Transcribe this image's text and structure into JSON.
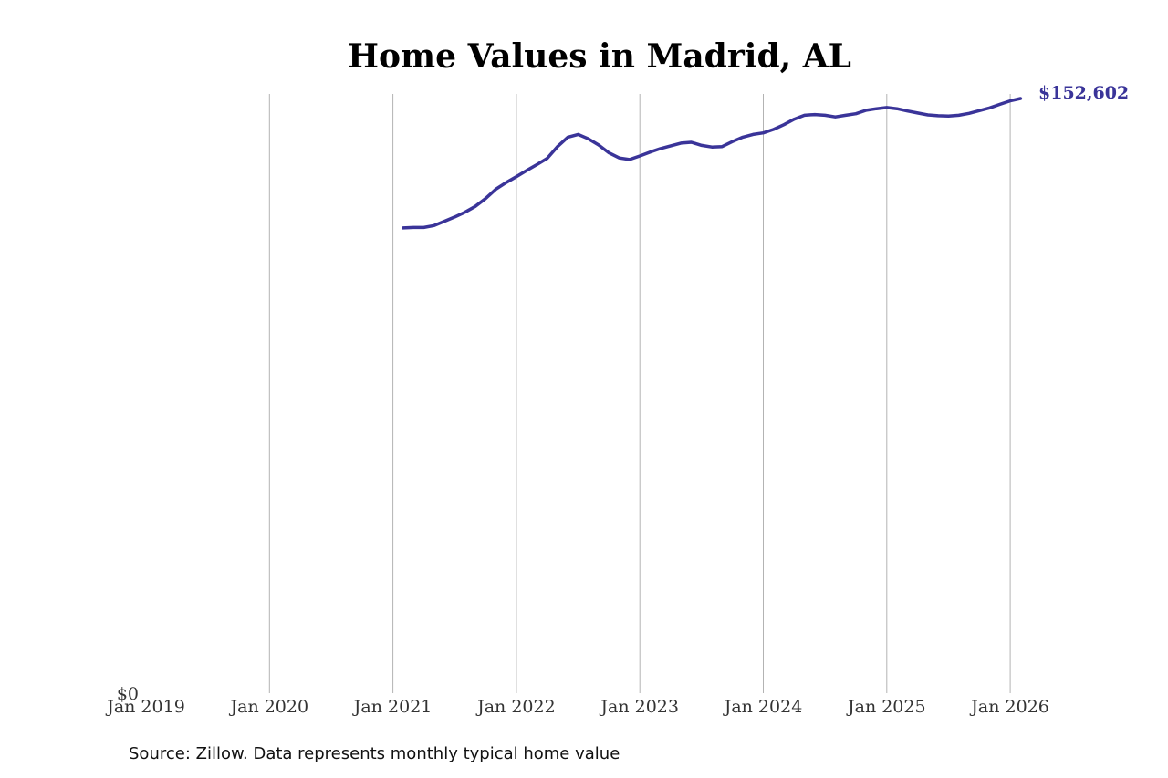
{
  "colors": {
    "line": "#3a3499",
    "end_label": "#3a3499",
    "grid": "#b3b3b3",
    "title": "#000000",
    "background": "#ffffff"
  },
  "source_note": "Source: Zillow. Data represents monthly typical home value",
  "chart_data": {
    "type": "line",
    "title": "Home Values in Madrid, AL",
    "xlabel": "",
    "ylabel": "",
    "grid": "vertical gridlines at each year",
    "x_ticks": [
      "Jan 2019",
      "Jan 2020",
      "Jan 2021",
      "Jan 2022",
      "Jan 2023",
      "Jan 2024",
      "Jan 2025",
      "Jan 2026"
    ],
    "y_ticks": [
      "$0"
    ],
    "ylim": [
      0,
      152602
    ],
    "end_label": "$152,602",
    "series": [
      {
        "x": [
          "2021-02",
          "2021-03",
          "2021-04",
          "2021-05",
          "2021-06",
          "2021-07",
          "2021-08",
          "2021-09",
          "2021-10",
          "2021-11",
          "2021-12",
          "2022-01",
          "2022-02",
          "2022-03",
          "2022-04",
          "2022-05",
          "2022-06",
          "2022-07",
          "2022-08",
          "2022-09",
          "2022-10",
          "2022-11",
          "2022-12",
          "2023-01",
          "2023-02",
          "2023-03",
          "2023-04",
          "2023-05",
          "2023-06",
          "2023-07",
          "2023-08",
          "2023-09",
          "2023-10",
          "2023-11",
          "2023-12",
          "2024-01",
          "2024-02",
          "2024-03",
          "2024-04",
          "2024-05",
          "2024-06",
          "2024-07",
          "2024-08",
          "2024-09",
          "2024-10",
          "2024-11",
          "2024-12",
          "2025-01",
          "2025-02",
          "2025-03",
          "2025-04",
          "2025-05",
          "2025-06",
          "2025-07",
          "2025-08",
          "2025-09",
          "2025-10",
          "2025-11",
          "2025-12",
          "2026-01",
          "2026-02"
        ],
        "values": [
          119500,
          119600,
          119600,
          120100,
          121200,
          122300,
          123500,
          125000,
          127000,
          129400,
          131100,
          132600,
          134200,
          135700,
          137300,
          140300,
          142700,
          143400,
          142300,
          140700,
          138700,
          137400,
          137000,
          137900,
          138900,
          139800,
          140500,
          141200,
          141400,
          140600,
          140200,
          140300,
          141600,
          142700,
          143400,
          143800,
          144700,
          145900,
          147300,
          148300,
          148500,
          148300,
          147900,
          148300,
          148700,
          149600,
          150000,
          150300,
          150000,
          149400,
          148900,
          148400,
          148200,
          148100,
          148300,
          148800,
          149500,
          150200,
          151100,
          152000,
          152602
        ]
      }
    ]
  }
}
